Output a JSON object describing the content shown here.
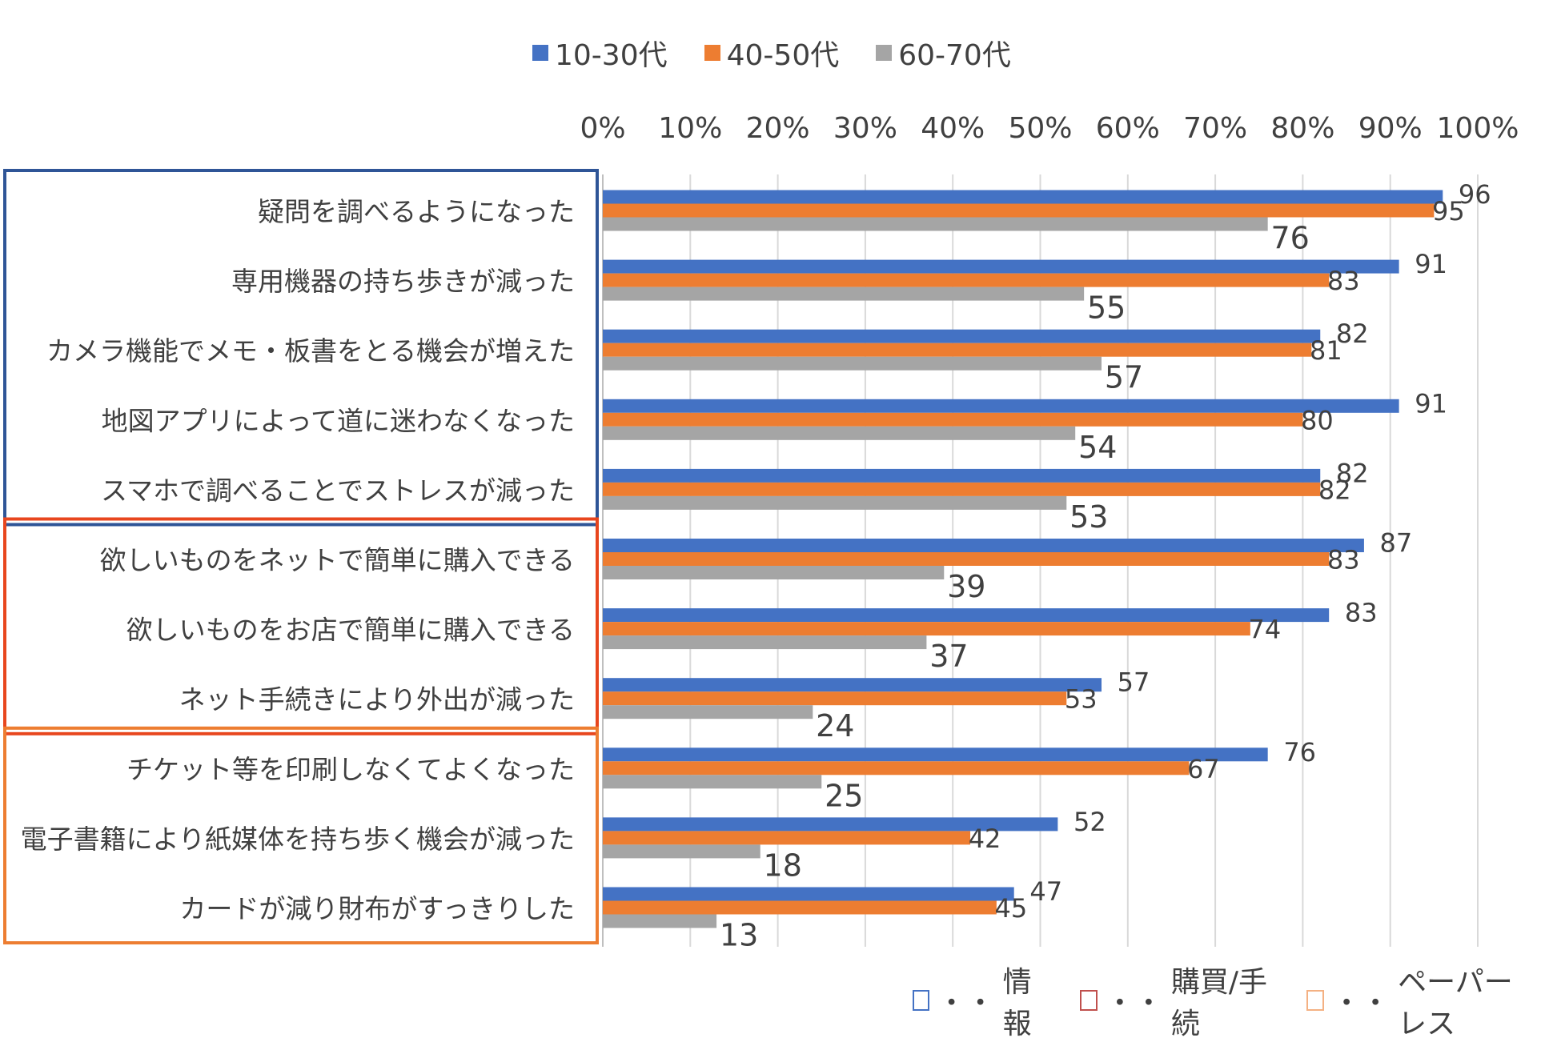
{
  "chart_data": {
    "type": "bar",
    "orientation": "horizontal",
    "xlim": [
      0,
      100
    ],
    "x_ticks": [
      "0%",
      "10%",
      "20%",
      "30%",
      "40%",
      "50%",
      "60%",
      "70%",
      "80%",
      "90%",
      "100%"
    ],
    "grid": true,
    "legend_position": "top",
    "categories": [
      "疑問を調べるようになった",
      "専用機器の持ち歩きが減った",
      "カメラ機能でメモ・板書をとる機会が増えた",
      "地図アプリによって道に迷わなくなった",
      "スマホで調べることでストレスが減った",
      "欲しいものをネットで簡単に購入できる",
      "欲しいものをお店で簡単に購入できる",
      "ネット手続きにより外出が減った",
      "チケット等を印刷しなくてよくなった",
      "電子書籍により紙媒体を持ち歩く機会が減った",
      "カードが減り財布がすっきりした"
    ],
    "series": [
      {
        "name": "10-30代",
        "color": "#4472C4",
        "values": [
          96,
          91,
          82,
          91,
          82,
          87,
          83,
          57,
          76,
          52,
          47
        ]
      },
      {
        "name": "40-50代",
        "color": "#ED7D31",
        "values": [
          95,
          83,
          81,
          80,
          82,
          83,
          74,
          53,
          67,
          42,
          45
        ]
      },
      {
        "name": "60-70代",
        "color": "#A5A5A5",
        "values": [
          76,
          55,
          57,
          54,
          53,
          39,
          37,
          24,
          25,
          18,
          13
        ]
      }
    ],
    "groups": [
      {
        "label": "情報",
        "color": "#2F5597",
        "range": [
          0,
          4
        ]
      },
      {
        "label": "購買/手続",
        "color": "#E8461E",
        "range": [
          5,
          7
        ]
      },
      {
        "label": "ペーパーレス",
        "color": "#ED7D31",
        "range": [
          8,
          10
        ]
      }
    ],
    "group_legend_prefix": "・・"
  }
}
